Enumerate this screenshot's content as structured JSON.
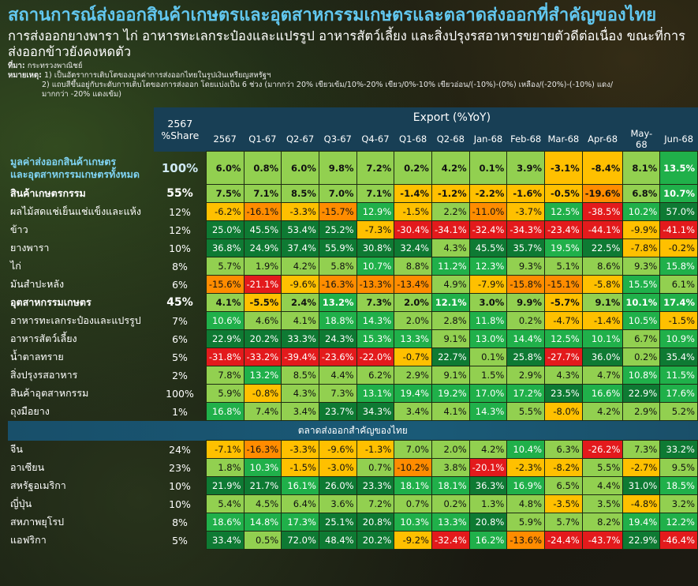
{
  "header": {
    "title": "สถานการณ์ส่งออกสินค้าเกษตรและอุตสาหกรรมเกษตรและตลาดส่งออกที่สำคัญของไทย",
    "subtitle": "การส่งออกยางพารา ไก่ อาหารทะเลกระป๋องและแปรรูป อาหารสัตว์เลี้ยง และสิ่งปรุงรสอาหารขยายตัวดีต่อเนื่อง ขณะที่การส่งออกข้าวยังคงหดตัว",
    "source_label": "ที่มา:",
    "source_text": "กระทรวงพาณิชย์",
    "note_label": "หมายเหตุ:",
    "note_1": "1) เป็นอัตราการเติบโตของมูลค่าการส่งออกไทยในรูปเงินเหรียญสหรัฐฯ",
    "note_2": "2) แถบสีขึ้นอยู่กับระดับการเติบโตของการส่งออก โดยแบ่งเป็น 6 ช่วง (มากกว่า 20% เขียวเข้ม/10%-20% เขียว/0%-10% เขียวอ่อน/(-10%)-(0%) เหลือง/(-20%)-(-10%) แดง/",
    "note_3": "มากกว่า -20% แดงเข้ม)"
  },
  "table": {
    "share_header_1": "2567",
    "share_header_2": "%Share",
    "export_header": "Export (%YoY)",
    "columns": [
      "2567",
      "Q1-67",
      "Q2-67",
      "Q3-67",
      "Q4-67",
      "Q1-68",
      "Q2-68",
      "Jan-68",
      "Feb-68",
      "Mar-68",
      "Apr-68",
      "May-68",
      "Jun-68"
    ],
    "rows": [
      {
        "label": "มูลค่าส่งออกสินค้าเกษตร\nและอุตสาหกรรมเกษตรทั้งหมด",
        "style": "blue",
        "share": "100%",
        "values": [
          "6.0%",
          "0.8%",
          "6.0%",
          "9.8%",
          "7.2%",
          "0.2%",
          "4.2%",
          "0.1%",
          "3.9%",
          "-3.1%",
          "-8.4%",
          "8.1%",
          "13.5%"
        ]
      },
      {
        "label": "สินค้าเกษตรกรรม",
        "style": "bold",
        "share": "55%",
        "values": [
          "7.5%",
          "7.1%",
          "8.5%",
          "7.0%",
          "7.1%",
          "-1.4%",
          "-1.2%",
          "-2.2%",
          "-1.6%",
          "-0.5%",
          "-19.6%",
          "6.8%",
          "10.7%"
        ]
      },
      {
        "label": "ผลไม้สดแช่เย็นแช่แข็งและแห้ง",
        "style": "normal",
        "share": "12%",
        "values": [
          "-6.2%",
          "-16.1%",
          "-3.3%",
          "-15.7%",
          "12.9%",
          "-1.5%",
          "2.2%",
          "-11.0%",
          "-3.7%",
          "12.5%",
          "-38.5%",
          "10.2%",
          "57.0%"
        ]
      },
      {
        "label": "ข้าว",
        "style": "normal",
        "share": "12%",
        "values": [
          "25.0%",
          "45.5%",
          "53.4%",
          "25.2%",
          "-7.3%",
          "-30.4%",
          "-34.1%",
          "-32.4%",
          "-34.3%",
          "-23.4%",
          "-44.1%",
          "-9.9%",
          "-41.1%"
        ]
      },
      {
        "label": "ยางพารา",
        "style": "normal",
        "share": "10%",
        "values": [
          "36.8%",
          "24.9%",
          "37.4%",
          "55.9%",
          "30.8%",
          "32.4%",
          "4.3%",
          "45.5%",
          "35.7%",
          "19.5%",
          "22.5%",
          "-7.8%",
          "-0.2%"
        ]
      },
      {
        "label": "ไก่",
        "style": "normal",
        "share": "8%",
        "values": [
          "5.7%",
          "1.9%",
          "4.2%",
          "5.8%",
          "10.7%",
          "8.8%",
          "11.2%",
          "12.3%",
          "9.3%",
          "5.1%",
          "8.6%",
          "9.3%",
          "15.8%"
        ]
      },
      {
        "label": "มันสำปะหลัง",
        "style": "normal",
        "share": "6%",
        "values": [
          "-15.6%",
          "-21.1%",
          "-9.6%",
          "-16.3%",
          "-13.3%",
          "-13.4%",
          "4.9%",
          "-7.9%",
          "-15.8%",
          "-15.1%",
          "-5.8%",
          "15.5%",
          "6.1%"
        ]
      },
      {
        "label": "อุตสาหกรรมเกษตร",
        "style": "bold",
        "share": "45%",
        "values": [
          "4.1%",
          "-5.5%",
          "2.4%",
          "13.2%",
          "7.3%",
          "2.0%",
          "12.1%",
          "3.0%",
          "9.9%",
          "-5.7%",
          "9.1%",
          "10.1%",
          "17.4%"
        ]
      },
      {
        "label": "อาหารทะเลกระป๋องและแปรรูป",
        "style": "normal",
        "share": "7%",
        "values": [
          "10.6%",
          "4.6%",
          "4.1%",
          "18.8%",
          "14.3%",
          "2.0%",
          "2.8%",
          "11.8%",
          "0.2%",
          "-4.7%",
          "-1.4%",
          "10.5%",
          "-1.5%"
        ]
      },
      {
        "label": "อาหารสัตว์เลี้ยง",
        "style": "normal",
        "share": "6%",
        "values": [
          "22.9%",
          "20.2%",
          "33.3%",
          "24.3%",
          "15.3%",
          "13.3%",
          "9.1%",
          "13.0%",
          "14.4%",
          "12.5%",
          "10.1%",
          "6.7%",
          "10.9%"
        ]
      },
      {
        "label": "น้ำตาลทราย",
        "style": "normal",
        "share": "5%",
        "values": [
          "-31.8%",
          "-33.2%",
          "-39.4%",
          "-23.6%",
          "-22.0%",
          "-0.7%",
          "22.7%",
          "0.1%",
          "25.8%",
          "-27.7%",
          "36.0%",
          "0.2%",
          "35.4%"
        ]
      },
      {
        "label": "สิ่งปรุงรสอาหาร",
        "style": "normal",
        "share": "2%",
        "values": [
          "7.8%",
          "13.2%",
          "8.5%",
          "4.4%",
          "6.2%",
          "2.9%",
          "9.1%",
          "1.5%",
          "2.9%",
          "4.3%",
          "4.7%",
          "10.8%",
          "11.5%"
        ]
      },
      {
        "label": "สินค้าอุตสาหกรรม",
        "style": "normal",
        "share": "100%",
        "values": [
          "5.9%",
          "-0.8%",
          "4.3%",
          "7.3%",
          "13.1%",
          "19.4%",
          "19.2%",
          "17.0%",
          "17.2%",
          "23.5%",
          "16.6%",
          "22.9%",
          "17.6%"
        ]
      },
      {
        "label": "ถุงมือยาง",
        "style": "normal",
        "share": "1%",
        "values": [
          "16.8%",
          "7.4%",
          "3.4%",
          "23.7%",
          "34.3%",
          "3.4%",
          "4.1%",
          "14.3%",
          "5.5%",
          "-8.0%",
          "4.2%",
          "2.9%",
          "5.2%"
        ]
      }
    ],
    "market_section_label": "ตลาดส่งออกสำคัญของไทย",
    "market_rows": [
      {
        "label": "จีน",
        "share": "24%",
        "values": [
          "-7.1%",
          "-16.3%",
          "-3.3%",
          "-9.6%",
          "-1.3%",
          "7.0%",
          "2.0%",
          "4.2%",
          "10.4%",
          "6.3%",
          "-26.2%",
          "7.3%",
          "33.2%"
        ]
      },
      {
        "label": "อาเซียน",
        "share": "23%",
        "values": [
          "1.8%",
          "10.3%",
          "-1.5%",
          "-3.0%",
          "0.7%",
          "-10.2%",
          "3.8%",
          "-20.1%",
          "-2.3%",
          "-8.2%",
          "5.5%",
          "-2.7%",
          "9.5%"
        ]
      },
      {
        "label": "สหรัฐอเมริกา",
        "share": "10%",
        "values": [
          "21.9%",
          "21.7%",
          "16.1%",
          "26.0%",
          "23.3%",
          "18.1%",
          "18.1%",
          "36.3%",
          "16.9%",
          "6.5%",
          "4.4%",
          "31.0%",
          "18.5%"
        ]
      },
      {
        "label": "ญี่ปุ่น",
        "share": "10%",
        "values": [
          "5.4%",
          "4.5%",
          "6.4%",
          "3.6%",
          "7.2%",
          "0.7%",
          "0.2%",
          "1.3%",
          "4.8%",
          "-3.5%",
          "3.5%",
          "-4.8%",
          "3.2%"
        ]
      },
      {
        "label": "สหภาพยุโรป",
        "share": "8%",
        "values": [
          "18.6%",
          "14.8%",
          "17.3%",
          "25.1%",
          "20.8%",
          "10.3%",
          "13.3%",
          "20.8%",
          "5.9%",
          "5.7%",
          "8.2%",
          "19.4%",
          "12.2%"
        ]
      },
      {
        "label": "แอฟริกา",
        "share": "5%",
        "values": [
          "33.4%",
          "0.5%",
          "72.0%",
          "48.4%",
          "20.2%",
          "-9.2%",
          "-32.4%",
          "16.2%",
          "-13.6%",
          "-24.4%",
          "-43.7%",
          "22.9%",
          "-46.4%"
        ]
      }
    ],
    "legend_colors": {
      "above_20": "#0e7a33",
      "10_to_20": "#20b04a",
      "0_to_10": "#92d050",
      "neg10_to_0": "#ffc000",
      "neg20_to_neg10": "#ff8c00",
      "below_neg20": "#e31a1c"
    }
  }
}
